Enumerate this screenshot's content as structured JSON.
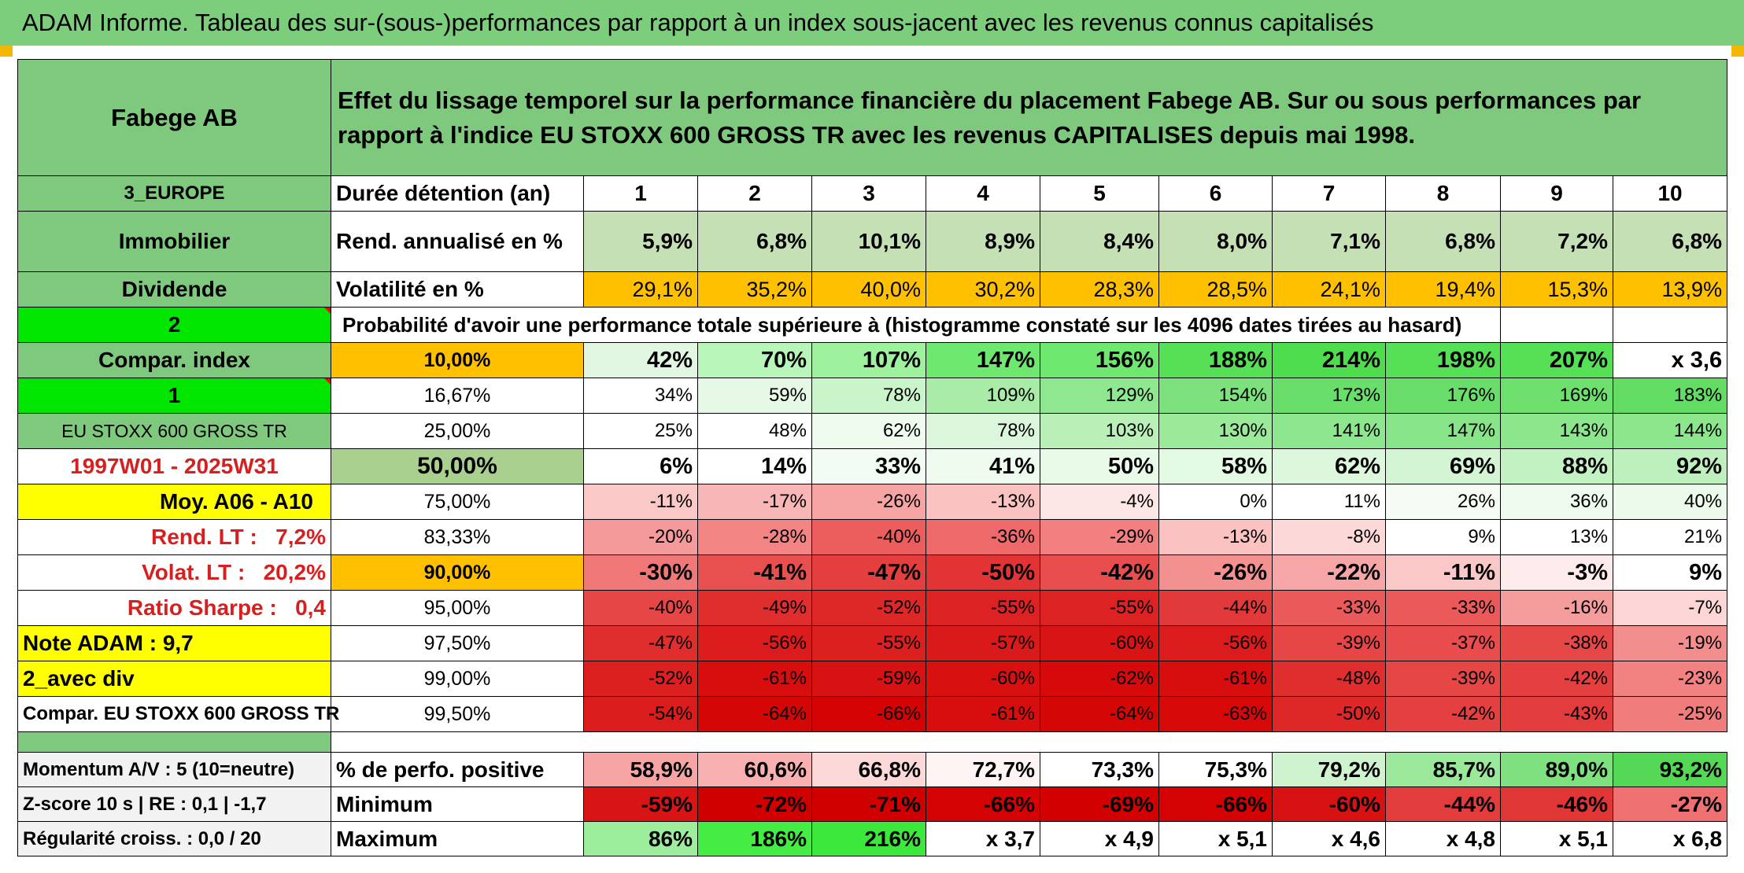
{
  "title": "ADAM Informe. Tableau des sur-(sous-)performances par rapport à un index sous-jacent avec les revenus connus capitalisés",
  "left": {
    "fund_name": "Fabege AB",
    "region": "3_EUROPE",
    "sector": "Immobilier",
    "dividend_label": "Dividende",
    "selector_2": "2",
    "compar_index": "Compar. index",
    "selector_1": "1",
    "index_name": "EU STOXX 600 GROSS TR",
    "period": "1997W01 - 2025W31",
    "moy": "Moy. A06 - A10",
    "rend_lt": "Rend. LT :   7,2%",
    "volat_lt": "Volat. LT :   20,2%",
    "sharpe": "Ratio Sharpe :   0,4",
    "note": "Note ADAM : 9,7",
    "avec_div": "2_avec div",
    "compar_full": "Compar. EU STOXX 600 GROSS TR"
  },
  "description": "Effet du lissage temporel sur la performance financière du placement Fabege AB. Sur ou sous performances par rapport à l'indice EU STOXX 600 GROSS TR avec les revenus CAPITALISES depuis mai 1998.",
  "durations_label": "Durée détention (an)",
  "durations": [
    "1",
    "2",
    "3",
    "4",
    "5",
    "6",
    "7",
    "8",
    "9",
    "10"
  ],
  "rend_label": "Rend. annualisé en %",
  "rend": [
    "5,9%",
    "6,8%",
    "10,1%",
    "8,9%",
    "8,4%",
    "8,0%",
    "7,1%",
    "6,8%",
    "7,2%",
    "6,8%"
  ],
  "vol_label": "Volatilité en %",
  "vol": [
    "29,1%",
    "35,2%",
    "40,0%",
    "30,2%",
    "28,3%",
    "28,5%",
    "24,1%",
    "19,4%",
    "15,3%",
    "13,9%"
  ],
  "prob_label": "Probabilité d'avoir une performance totale supérieure à (histogramme constaté sur les 4096 dates tirées au hasard)",
  "probabilities": [
    {
      "p": "10,00%",
      "v": [
        "42%",
        "70%",
        "107%",
        "147%",
        "156%",
        "188%",
        "214%",
        "198%",
        "207%",
        "x 3,6"
      ],
      "c": [
        "#e2f7e2",
        "#b8f5b8",
        "#9ef29e",
        "#6ee86e",
        "#6ee86e",
        "#55e055",
        "#4ddd4d",
        "#55e055",
        "#55e055",
        "#ffffff"
      ],
      "bold": true
    },
    {
      "p": "16,67%",
      "v": [
        "34%",
        "59%",
        "78%",
        "109%",
        "129%",
        "154%",
        "173%",
        "176%",
        "169%",
        "183%"
      ],
      "c": [
        "#ffffff",
        "#e6f8e6",
        "#caf4ca",
        "#a8eca8",
        "#8fe88f",
        "#7de27d",
        "#6ade6a",
        "#6ade6a",
        "#6ee06e",
        "#62dc62"
      ],
      "bold": false
    },
    {
      "p": "25,00%",
      "v": [
        "25%",
        "48%",
        "62%",
        "78%",
        "103%",
        "130%",
        "141%",
        "147%",
        "143%",
        "144%"
      ],
      "c": [
        "#ffffff",
        "#ffffff",
        "#f0fbf0",
        "#dcf6dc",
        "#b8f0b8",
        "#9aea9a",
        "#8ee68e",
        "#88e488",
        "#8ce68c",
        "#8ce68c"
      ],
      "bold": false
    },
    {
      "p": "50,00%",
      "v": [
        "6%",
        "14%",
        "33%",
        "41%",
        "50%",
        "58%",
        "62%",
        "69%",
        "88%",
        "92%"
      ],
      "c": [
        "#ffffff",
        "#ffffff",
        "#f2fcf2",
        "#eefbee",
        "#e8fae8",
        "#e2f9e2",
        "#dcf7dc",
        "#d4f5d4",
        "#c2f1c2",
        "#bdf0bd"
      ],
      "bold": true
    },
    {
      "p": "75,00%",
      "v": [
        "-11%",
        "-17%",
        "-26%",
        "-13%",
        "-4%",
        "0%",
        "11%",
        "26%",
        "36%",
        "40%"
      ],
      "c": [
        "#fbc8c8",
        "#f9b6b6",
        "#f7a4a4",
        "#fbc2c2",
        "#fde6e6",
        "#ffffff",
        "#ffffff",
        "#f4fcf4",
        "#eefbee",
        "#ecfaec"
      ],
      "bold": false
    },
    {
      "p": "83,33%",
      "v": [
        "-20%",
        "-28%",
        "-40%",
        "-36%",
        "-29%",
        "-13%",
        "-8%",
        "9%",
        "13%",
        "21%"
      ],
      "c": [
        "#f59a9a",
        "#f28484",
        "#ec5e5e",
        "#ee6a6a",
        "#f28080",
        "#fbc2c2",
        "#fdd8d8",
        "#ffffff",
        "#ffffff",
        "#ffffff"
      ],
      "bold": false
    },
    {
      "p": "90,00%",
      "v": [
        "-30%",
        "-41%",
        "-47%",
        "-50%",
        "-42%",
        "-26%",
        "-22%",
        "-11%",
        "-3%",
        "9%"
      ],
      "c": [
        "#f07878",
        "#e85050",
        "#e43e3e",
        "#e23434",
        "#e84e4e",
        "#f39090",
        "#f6a6a6",
        "#fbc8c8",
        "#fdeaea",
        "#ffffff"
      ],
      "bold": true
    },
    {
      "p": "95,00%",
      "v": [
        "-40%",
        "-49%",
        "-52%",
        "-55%",
        "-55%",
        "-44%",
        "-33%",
        "-33%",
        "-16%",
        "-7%"
      ],
      "c": [
        "#e64646",
        "#e02e2e",
        "#de2828",
        "#dc2222",
        "#dc2222",
        "#e23a3a",
        "#ea5a5a",
        "#ea5a5a",
        "#f59c9c",
        "#fcd6d6"
      ],
      "bold": false
    },
    {
      "p": "97,50%",
      "v": [
        "-47%",
        "-56%",
        "-55%",
        "-57%",
        "-60%",
        "-56%",
        "-39%",
        "-37%",
        "-38%",
        "-19%"
      ],
      "c": [
        "#e02e2e",
        "#dc1c1c",
        "#dc2020",
        "#da1a1a",
        "#d81414",
        "#dc1c1c",
        "#e64646",
        "#e84c4c",
        "#e64848",
        "#f38e8e"
      ],
      "bold": false
    },
    {
      "p": "99,00%",
      "v": [
        "-52%",
        "-61%",
        "-59%",
        "-60%",
        "-62%",
        "-61%",
        "-48%",
        "-39%",
        "-42%",
        "-23%"
      ],
      "c": [
        "#dc2020",
        "#d80e0e",
        "#d81212",
        "#d81010",
        "#d60a0a",
        "#d80e0e",
        "#e02e2e",
        "#e64646",
        "#e44040",
        "#f28282"
      ],
      "bold": false
    },
    {
      "p": "99,50%",
      "v": [
        "-54%",
        "-64%",
        "-66%",
        "-61%",
        "-64%",
        "-63%",
        "-50%",
        "-42%",
        "-43%",
        "-25%"
      ],
      "c": [
        "#da1c1c",
        "#d40606",
        "#d40202",
        "#d80e0e",
        "#d40606",
        "#d60808",
        "#de2828",
        "#e44040",
        "#e23c3c",
        "#f07c7c"
      ],
      "bold": false
    }
  ],
  "bottom": [
    {
      "left": "Momentum A/V : 5 (10=neutre)",
      "label": "% de perfo. positive",
      "v": [
        "58,9%",
        "60,6%",
        "66,8%",
        "72,7%",
        "73,3%",
        "75,3%",
        "79,2%",
        "85,7%",
        "89,0%",
        "93,2%"
      ],
      "c": [
        "#f7a4a4",
        "#f8b0b0",
        "#fdd8d8",
        "#fff4f4",
        "#ffffff",
        "#ffffff",
        "#cff3cf",
        "#9ae89a",
        "#7ee07e",
        "#55d855"
      ]
    },
    {
      "left": "Z-score 10 s | RE : 0,1 | -1,7",
      "label": "Minimum",
      "v": [
        "-59%",
        "-72%",
        "-71%",
        "-66%",
        "-69%",
        "-66%",
        "-60%",
        "-44%",
        "-46%",
        "-27%"
      ],
      "c": [
        "#d81414",
        "#d00000",
        "#d00000",
        "#d40202",
        "#d20000",
        "#d40202",
        "#d81212",
        "#e23c3c",
        "#e03636",
        "#ee7070"
      ]
    },
    {
      "left": "Régularité croiss. : 0,0 / 20",
      "label": "Maximum",
      "v": [
        "86%",
        "186%",
        "216%",
        "x 3,7",
        "x 4,9",
        "x 5,1",
        "x 4,6",
        "x 4,8",
        "x 5,1",
        "x 6,8"
      ],
      "c": [
        "#9cee9c",
        "#44ec44",
        "#3ce83c",
        "#ffffff",
        "#ffffff",
        "#ffffff",
        "#ffffff",
        "#ffffff",
        "#ffffff",
        "#ffffff"
      ]
    }
  ],
  "colors": {
    "title_bg": "#7ccd7c",
    "label_bg": "#7fc97f",
    "selector": "#00e600",
    "yellow": "#ffff00",
    "orange": "#ffc000",
    "red_text": "#d62020"
  }
}
